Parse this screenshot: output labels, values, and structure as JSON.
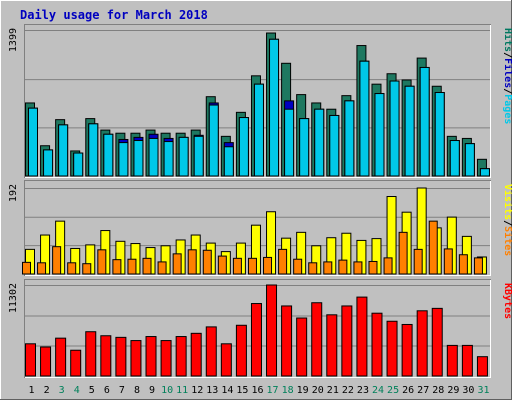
{
  "chart_data": {
    "type": "bar",
    "title": "Daily usage for March 2018",
    "x": [
      "1",
      "2",
      "3",
      "4",
      "5",
      "6",
      "7",
      "8",
      "9",
      "10",
      "11",
      "12",
      "13",
      "14",
      "15",
      "16",
      "17",
      "18",
      "19",
      "20",
      "21",
      "22",
      "23",
      "24",
      "25",
      "26",
      "27",
      "28",
      "29",
      "30",
      "31"
    ],
    "weekend_days": [
      "3",
      "4",
      "10",
      "11",
      "17",
      "18",
      "24",
      "25",
      "31"
    ],
    "panels": [
      {
        "id": "hits-files-pages",
        "max_label": "1399",
        "ymax": 1399,
        "legend": [
          {
            "label": "Pages",
            "color": "#00c8e8"
          },
          {
            "label": "Files",
            "color": "#0000c0"
          },
          {
            "label": "Hits",
            "color": "#007860"
          }
        ],
        "separator": "/",
        "series": [
          {
            "name": "Hits",
            "color": "#1e7860",
            "values": [
              700,
              290,
              540,
              240,
              550,
              440,
              410,
              410,
              440,
              410,
              410,
              440,
              760,
              380,
              610,
              960,
              1370,
              1080,
              780,
              700,
              640,
              770,
              1250,
              880,
              980,
              920,
              1130,
              860,
              380,
              360,
              160
            ]
          },
          {
            "name": "Files",
            "color": "#0000c0",
            "values": [
              650,
              250,
              490,
              220,
              500,
              400,
              350,
              370,
              400,
              360,
              370,
              390,
              700,
              320,
              560,
              880,
              1310,
              720,
              550,
              640,
              580,
              720,
              1100,
              790,
              910,
              860,
              1040,
              800,
              340,
              310,
              70
            ]
          },
          {
            "name": "Pages",
            "color": "#00c8e8",
            "values": [
              650,
              250,
              490,
              220,
              500,
              400,
              320,
              340,
              360,
              330,
              370,
              380,
              680,
              280,
              560,
              880,
              1310,
              640,
              550,
              640,
              580,
              720,
              1100,
              790,
              910,
              860,
              1040,
              800,
              340,
              310,
              70
            ]
          }
        ]
      },
      {
        "id": "visits-sites",
        "max_label": "192",
        "ymax": 192,
        "legend": [
          {
            "label": "Sites",
            "color": "#ff8000"
          },
          {
            "label": "Visits",
            "color": "#ffff00"
          }
        ],
        "separator": "/",
        "series": [
          {
            "name": "Visits",
            "color": "#ffff00",
            "values": [
              55,
              87,
              118,
              57,
              65,
              97,
              73,
              68,
              59,
              63,
              76,
              87,
              69,
              50,
              69,
              109,
              139,
              80,
              93,
              63,
              81,
              91,
              75,
              79,
              173,
              138,
              192,
              103,
              127,
              84,
              38
            ]
          },
          {
            "name": "Sites",
            "color": "#ff8000",
            "values": [
              26,
              25,
              61,
              25,
              23,
              54,
              32,
              33,
              35,
              27,
              45,
              54,
              53,
              40,
              35,
              35,
              37,
              55,
              33,
              25,
              27,
              31,
              27,
              28,
              36,
              93,
              55,
              118,
              56,
              43,
              36
            ]
          }
        ]
      },
      {
        "id": "kbytes",
        "max_label": "11302",
        "ymax": 11302,
        "legend": [
          {
            "label": "KBytes",
            "color": "#ff0000"
          }
        ],
        "separator": "",
        "series": [
          {
            "name": "KBytes",
            "color": "#ff0000",
            "values": [
              4000,
              3600,
              4700,
              3200,
              5500,
              5000,
              4800,
              4400,
              4900,
              4400,
              4900,
              5300,
              6100,
              4000,
              6300,
              9000,
              11302,
              8700,
              7200,
              9100,
              7600,
              8700,
              9800,
              7800,
              6800,
              6400,
              8100,
              8400,
              3800,
              3800,
              2400
            ]
          }
        ]
      }
    ]
  }
}
